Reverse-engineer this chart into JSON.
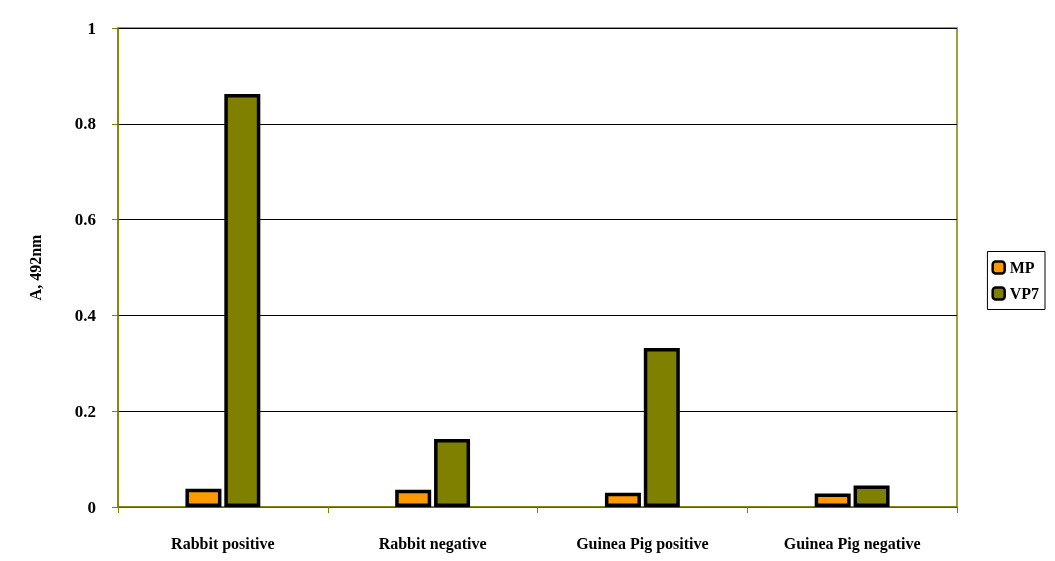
{
  "chart_data": {
    "type": "bar",
    "ylabel": "A, 492nm",
    "categories": [
      "Rabbit positive",
      "Rabbit negative",
      "Guinea Pig positive",
      "Guinea Pig negative"
    ],
    "series": [
      {
        "name": "MP",
        "color": "#ff9900",
        "values": [
          0.038,
          0.036,
          0.03,
          0.028
        ]
      },
      {
        "name": "VP7",
        "color": "#808000",
        "values": [
          0.862,
          0.142,
          0.332,
          0.045
        ]
      }
    ],
    "ylim": [
      0,
      1
    ],
    "yticks": [
      0,
      0.2,
      0.4,
      0.6,
      0.8,
      1
    ],
    "grid": "y",
    "legend": "right"
  }
}
